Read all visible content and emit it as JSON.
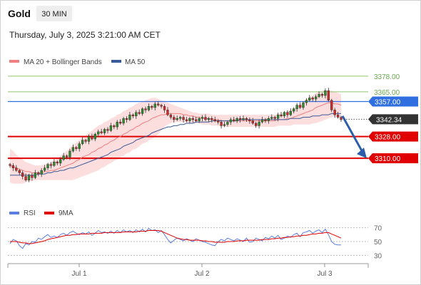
{
  "header": {
    "symbol": "Gold",
    "timeframe": "30 MIN",
    "timestamp": "Thursday, July 3, 2025 3:21:00 AM CET"
  },
  "legend": {
    "ma20": "MA 20 + Bollinger Bands",
    "ma50": "MA 50",
    "rsi": "RSI",
    "ma9": "9MA"
  },
  "colors": {
    "candle_up": "#2e8b2e",
    "candle_down": "#cc2b2b",
    "ma20": "#f08080",
    "bollinger_fill": "#fbd3d3",
    "ma50": "#3a5a99",
    "level_blue": "#2f6fe0",
    "level_red": "#e00000",
    "level_green": "#8fc46b",
    "rsi": "#5b7fe0",
    "ma9": "#e00000",
    "arrow": "#2a5ea8",
    "current_tag": "#333333"
  },
  "chart_data": [
    {
      "type": "candlestick",
      "x_ticks": [
        "Jul 1",
        "Jul 2",
        "Jul 3"
      ],
      "ylim": [
        3270,
        3385
      ],
      "levels": [
        {
          "value": 3378.0,
          "label": "3378.00",
          "style": "green-line"
        },
        {
          "value": 3365.0,
          "label": "3365.00",
          "style": "green-line"
        },
        {
          "value": 3357.0,
          "label": "3357.00",
          "style": "blue-tag"
        },
        {
          "value": 3328.0,
          "label": "3328.00",
          "style": "red-tag"
        },
        {
          "value": 3310.0,
          "label": "3310.00",
          "style": "red-tag"
        }
      ],
      "current_price": {
        "value": 3342.34,
        "label": "3342.34"
      },
      "projection": {
        "from": 3345,
        "to": 3310,
        "direction": "down"
      },
      "series": [
        {
          "name": "Gold",
          "close": [
            3304,
            3302,
            3300,
            3298,
            3295,
            3292,
            3296,
            3294,
            3298,
            3297,
            3300,
            3302,
            3305,
            3304,
            3307,
            3306,
            3309,
            3312,
            3311,
            3316,
            3319,
            3318,
            3322,
            3325,
            3324,
            3328,
            3326,
            3330,
            3332,
            3331,
            3334,
            3333,
            3337,
            3336,
            3340,
            3339,
            3343,
            3342,
            3346,
            3345,
            3348,
            3347,
            3351,
            3350,
            3353,
            3352,
            3355,
            3354,
            3353,
            3350,
            3346,
            3344,
            3342,
            3343,
            3344,
            3342,
            3341,
            3343,
            3342,
            3341,
            3343,
            3344,
            3342,
            3343,
            3342,
            3341,
            3340,
            3337,
            3338,
            3340,
            3342,
            3341,
            3343,
            3342,
            3343,
            3342,
            3341,
            3339,
            3337,
            3340,
            3342,
            3341,
            3343,
            3344,
            3343,
            3346,
            3345,
            3348,
            3346,
            3349,
            3351,
            3354,
            3352,
            3356,
            3358,
            3360,
            3359,
            3361,
            3363,
            3362,
            3366,
            3358,
            3350,
            3346,
            3344,
            3342
          ],
          "ma20": [
            3304,
            3303,
            3302,
            3301,
            3300,
            3299,
            3299,
            3298,
            3298,
            3298,
            3298,
            3299,
            3299,
            3300,
            3300,
            3301,
            3302,
            3303,
            3304,
            3305,
            3306,
            3308,
            3309,
            3311,
            3312,
            3313,
            3315,
            3316,
            3318,
            3319,
            3321,
            3322,
            3324,
            3325,
            3327,
            3328,
            3330,
            3331,
            3333,
            3334,
            3336,
            3337,
            3339,
            3340,
            3341,
            3343,
            3344,
            3345,
            3346,
            3346,
            3347,
            3347,
            3347,
            3347,
            3347,
            3346,
            3346,
            3345,
            3345,
            3344,
            3344,
            3343,
            3343,
            3343,
            3342,
            3342,
            3342,
            3341,
            3341,
            3341,
            3341,
            3341,
            3341,
            3341,
            3341,
            3341,
            3341,
            3341,
            3341,
            3341,
            3341,
            3341,
            3341,
            3341,
            3341,
            3342,
            3342,
            3342,
            3343,
            3343,
            3344,
            3345,
            3346,
            3347,
            3348,
            3349,
            3350,
            3352,
            3353,
            3354,
            3355,
            3356,
            3356,
            3355,
            3355,
            3354
          ],
          "bb_upper": [
            3318,
            3316,
            3313,
            3311,
            3309,
            3307,
            3306,
            3305,
            3304,
            3304,
            3304,
            3305,
            3306,
            3307,
            3308,
            3310,
            3312,
            3314,
            3316,
            3319,
            3321,
            3323,
            3325,
            3327,
            3329,
            3331,
            3333,
            3335,
            3337,
            3338,
            3340,
            3341,
            3343,
            3344,
            3346,
            3347,
            3349,
            3350,
            3352,
            3353,
            3355,
            3356,
            3357,
            3358,
            3359,
            3360,
            3360,
            3359,
            3358,
            3357,
            3356,
            3355,
            3354,
            3353,
            3352,
            3351,
            3350,
            3349,
            3348,
            3348,
            3347,
            3347,
            3347,
            3347,
            3346,
            3346,
            3346,
            3346,
            3346,
            3346,
            3346,
            3346,
            3346,
            3346,
            3346,
            3346,
            3346,
            3346,
            3346,
            3346,
            3346,
            3346,
            3346,
            3346,
            3346,
            3347,
            3347,
            3348,
            3349,
            3350,
            3351,
            3353,
            3355,
            3357,
            3359,
            3361,
            3362,
            3364,
            3365,
            3366,
            3366,
            3366,
            3366,
            3365,
            3364,
            3363
          ],
          "bb_lower": [
            3290,
            3289,
            3289,
            3289,
            3289,
            3290,
            3291,
            3291,
            3292,
            3292,
            3292,
            3292,
            3292,
            3292,
            3292,
            3292,
            3292,
            3292,
            3292,
            3292,
            3292,
            3293,
            3294,
            3295,
            3296,
            3297,
            3298,
            3299,
            3300,
            3302,
            3303,
            3305,
            3306,
            3308,
            3309,
            3311,
            3312,
            3314,
            3315,
            3317,
            3318,
            3320,
            3322,
            3323,
            3325,
            3326,
            3328,
            3330,
            3333,
            3336,
            3338,
            3339,
            3340,
            3340,
            3340,
            3340,
            3339,
            3339,
            3339,
            3339,
            3339,
            3338,
            3338,
            3338,
            3337,
            3337,
            3337,
            3336,
            3336,
            3336,
            3336,
            3336,
            3336,
            3336,
            3336,
            3336,
            3336,
            3336,
            3336,
            3336,
            3336,
            3336,
            3336,
            3336,
            3336,
            3337,
            3337,
            3337,
            3337,
            3337,
            3338,
            3338,
            3338,
            3338,
            3338,
            3338,
            3339,
            3339,
            3340,
            3341,
            3342,
            3343,
            3344,
            3344,
            3344,
            3344
          ],
          "ma50": [
            3296,
            3296,
            3296,
            3296,
            3296,
            3296,
            3296,
            3296,
            3296,
            3297,
            3297,
            3297,
            3298,
            3298,
            3299,
            3299,
            3300,
            3300,
            3301,
            3302,
            3302,
            3303,
            3304,
            3305,
            3306,
            3307,
            3308,
            3309,
            3310,
            3311,
            3312,
            3313,
            3315,
            3316,
            3317,
            3318,
            3320,
            3321,
            3322,
            3323,
            3325,
            3326,
            3327,
            3328,
            3329,
            3331,
            3332,
            3333,
            3334,
            3335,
            3336,
            3336,
            3337,
            3337,
            3338,
            3338,
            3339,
            3339,
            3339,
            3340,
            3340,
            3340,
            3340,
            3340,
            3341,
            3341,
            3341,
            3341,
            3341,
            3341,
            3341,
            3341,
            3341,
            3342,
            3342,
            3342,
            3342,
            3342,
            3342,
            3342,
            3342,
            3342,
            3342,
            3342,
            3342,
            3342,
            3342,
            3342,
            3342,
            3343,
            3343,
            3343,
            3343,
            3344,
            3344,
            3344,
            3345,
            3345,
            3345,
            3346,
            3346,
            3346,
            3347,
            3347,
            3347,
            3347
          ]
        }
      ]
    },
    {
      "type": "line",
      "ylim": [
        20,
        80
      ],
      "y_ticks": [
        70,
        50,
        30
      ],
      "series": [
        {
          "name": "RSI",
          "values": [
            47,
            53,
            51,
            44,
            40,
            47,
            45,
            50,
            49,
            55,
            53,
            57,
            60,
            56,
            58,
            56,
            60,
            62,
            59,
            63,
            65,
            62,
            60,
            63,
            61,
            64,
            59,
            62,
            66,
            63,
            64,
            62,
            65,
            62,
            66,
            63,
            67,
            64,
            66,
            63,
            67,
            64,
            68,
            64,
            69,
            66,
            67,
            63,
            66,
            60,
            53,
            48,
            52,
            55,
            53,
            51,
            54,
            52,
            50,
            54,
            52,
            50,
            49,
            47,
            45,
            44,
            50,
            53,
            51,
            55,
            53,
            51,
            54,
            52,
            50,
            55,
            49,
            50,
            55,
            53,
            51,
            56,
            54,
            58,
            55,
            59,
            53,
            55,
            58,
            56,
            60,
            62,
            57,
            63,
            64,
            66,
            62,
            65,
            67,
            63,
            68,
            60,
            50,
            46,
            45,
            45
          ]
        },
        {
          "name": "9MA",
          "values": [
            50,
            50,
            50,
            49,
            48,
            48,
            47,
            47,
            48,
            49,
            50,
            51,
            53,
            54,
            55,
            56,
            57,
            58,
            59,
            59,
            60,
            60,
            61,
            61,
            61,
            61,
            62,
            62,
            62,
            62,
            63,
            63,
            63,
            63,
            63,
            63,
            64,
            64,
            64,
            64,
            64,
            65,
            65,
            65,
            66,
            66,
            66,
            66,
            65,
            63,
            61,
            59,
            57,
            55,
            54,
            53,
            53,
            52,
            52,
            52,
            52,
            51,
            51,
            50,
            50,
            49,
            49,
            49,
            49,
            50,
            50,
            50,
            51,
            51,
            51,
            52,
            52,
            52,
            52,
            52,
            53,
            53,
            53,
            54,
            54,
            55,
            55,
            56,
            56,
            57,
            57,
            58,
            58,
            59,
            59,
            60,
            61,
            61,
            62,
            62,
            63,
            63,
            61,
            59,
            57,
            55
          ]
        }
      ]
    }
  ]
}
